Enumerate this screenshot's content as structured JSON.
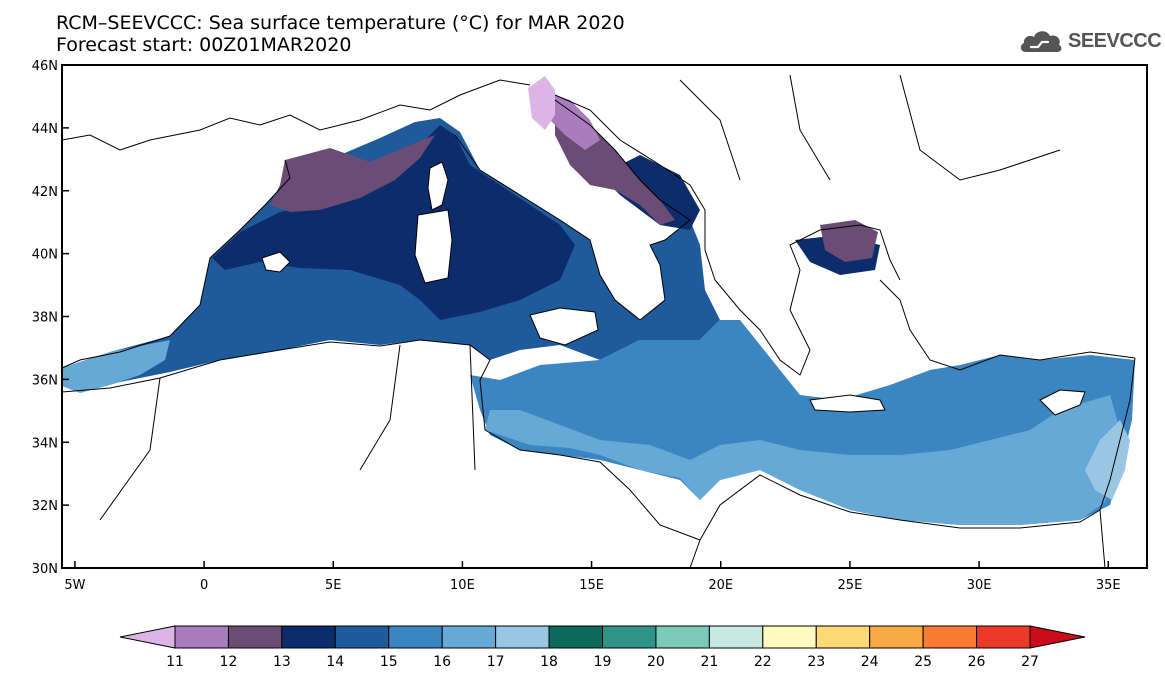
{
  "title": {
    "line1": "RCM–SEEVCCC: Sea surface temperature (°C) for MAR 2020",
    "line2": "Forecast start: 00Z01MAR2020"
  },
  "logo": {
    "text": "SEEVCCC",
    "icon": "cloud-icon",
    "color": "#555555"
  },
  "map": {
    "lon_range": [
      -5.5,
      36.5
    ],
    "lat_range": [
      30,
      46
    ],
    "lat_ticks": [
      {
        "value": 46,
        "label": "46N"
      },
      {
        "value": 44,
        "label": "44N"
      },
      {
        "value": 42,
        "label": "42N"
      },
      {
        "value": 40,
        "label": "40N"
      },
      {
        "value": 38,
        "label": "38N"
      },
      {
        "value": 36,
        "label": "36N"
      },
      {
        "value": 34,
        "label": "34N"
      },
      {
        "value": 32,
        "label": "32N"
      },
      {
        "value": 30,
        "label": "30N"
      }
    ],
    "lon_ticks": [
      {
        "value": -5,
        "label": "5W"
      },
      {
        "value": 0,
        "label": "0"
      },
      {
        "value": 5,
        "label": "5E"
      },
      {
        "value": 10,
        "label": "10E"
      },
      {
        "value": 15,
        "label": "15E"
      },
      {
        "value": 20,
        "label": "20E"
      },
      {
        "value": 25,
        "label": "25E"
      },
      {
        "value": 30,
        "label": "30E"
      },
      {
        "value": 35,
        "label": "35E"
      }
    ]
  },
  "colorbar": {
    "labels": [
      "11",
      "12",
      "13",
      "14",
      "15",
      "16",
      "17",
      "18",
      "19",
      "20",
      "21",
      "22",
      "23",
      "24",
      "25",
      "26",
      "27"
    ],
    "colors": [
      "#dcb4e6",
      "#a97cbe",
      "#6a4c74",
      "#0c2c6b",
      "#1f5b9b",
      "#3b86c0",
      "#66a9d6",
      "#99c7e3",
      "#0b6a5a",
      "#2f9487",
      "#7cc9bc",
      "#c6e9e2",
      "#fffbc0",
      "#ffd975",
      "#f9a945",
      "#f97b34",
      "#eb3b28",
      "#cc0c1b"
    ]
  }
}
